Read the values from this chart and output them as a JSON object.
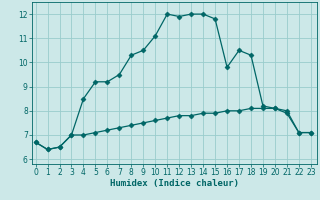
{
  "title": "",
  "xlabel": "Humidex (Indice chaleur)",
  "background_color": "#cce8e8",
  "grid_color": "#99cccc",
  "line_color": "#006666",
  "x_upper": [
    0,
    1,
    2,
    3,
    4,
    5,
    6,
    7,
    8,
    9,
    10,
    11,
    12,
    13,
    14,
    15,
    16,
    17,
    18,
    19,
    20,
    21,
    22,
    23
  ],
  "y_upper": [
    6.7,
    6.4,
    6.5,
    7.0,
    8.5,
    9.2,
    9.2,
    9.5,
    10.3,
    10.5,
    11.1,
    12.0,
    11.9,
    12.0,
    12.0,
    11.8,
    9.8,
    10.5,
    10.3,
    8.2,
    8.1,
    7.9,
    7.1,
    7.1
  ],
  "x_lower": [
    0,
    1,
    2,
    3,
    4,
    5,
    6,
    7,
    8,
    9,
    10,
    11,
    12,
    13,
    14,
    15,
    16,
    17,
    18,
    19,
    20,
    21,
    22,
    23
  ],
  "y_lower": [
    6.7,
    6.4,
    6.5,
    7.0,
    7.0,
    7.1,
    7.2,
    7.3,
    7.4,
    7.5,
    7.6,
    7.7,
    7.8,
    7.8,
    7.9,
    7.9,
    8.0,
    8.0,
    8.1,
    8.1,
    8.1,
    8.0,
    7.1,
    7.1
  ],
  "ylim": [
    5.8,
    12.5
  ],
  "yticks": [
    6,
    7,
    8,
    9,
    10,
    11,
    12
  ],
  "xticks": [
    0,
    1,
    2,
    3,
    4,
    5,
    6,
    7,
    8,
    9,
    10,
    11,
    12,
    13,
    14,
    15,
    16,
    17,
    18,
    19,
    20,
    21,
    22,
    23
  ],
  "xlim": [
    -0.3,
    23.5
  ]
}
